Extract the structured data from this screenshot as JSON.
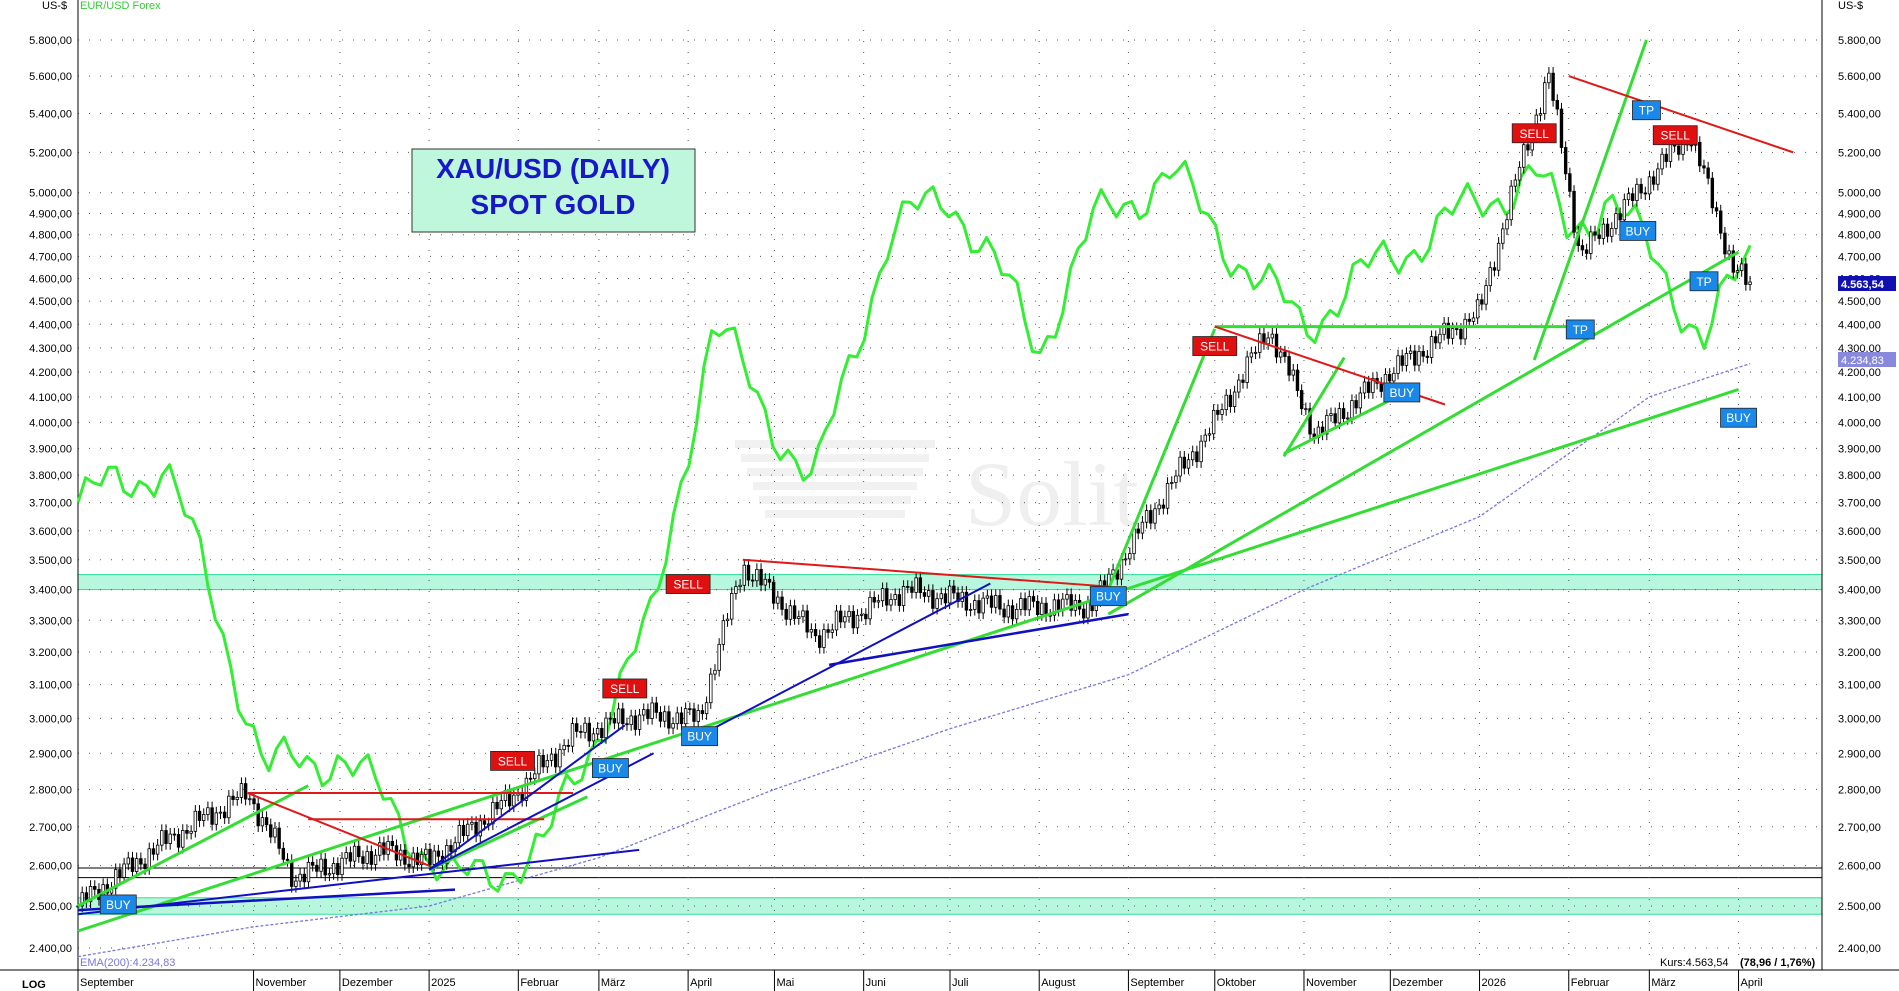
{
  "unit_label": "US-$",
  "overlay_label": "EUR/USD Forex",
  "title_lines": [
    "XAU/USD (DAILY)",
    "SPOT GOLD"
  ],
  "watermark": "Solit",
  "scale_label": "LOG",
  "ema_label": "EMA(200):4.234,83",
  "kurs_label": "Kurs:4.563,54",
  "kurs_change": "(78,96 / 1,76%)",
  "price_badge": "4.563,54",
  "ema_badge": "4.234,83",
  "colors": {
    "gold_candles": "#000000",
    "eurusd_line": "#33ee33",
    "trend_green": "#33dd33",
    "trend_red": "#e01818",
    "trend_blue": "#1010c0",
    "ema": "#7777dd",
    "support_zone": "#b6f7de",
    "sell_tag": "#e01010",
    "buy_tag": "#1a88e8",
    "title_box": "#bff7dc",
    "title_text": "#1818c8"
  },
  "chart_data": {
    "type": "line",
    "y_scale": "log",
    "ylim": [
      2350,
      5900
    ],
    "yticks": [
      "2.400,00",
      "2.500,00",
      "2.600,00",
      "2.700,00",
      "2.800,00",
      "2.900,00",
      "3.000,00",
      "3.100,00",
      "3.200,00",
      "3.300,00",
      "3.400,00",
      "3.500,00",
      "3.600,00",
      "3.700,00",
      "3.800,00",
      "3.900,00",
      "4.000,00",
      "4.100,00",
      "4.200,00",
      "4.300,00",
      "4.400,00",
      "4.500,00",
      "4.600,00",
      "4.700,00",
      "4.800,00",
      "4.900,00",
      "5.000,00",
      "5.200,00",
      "5.400,00",
      "5.600,00",
      "5.800,00"
    ],
    "x_labels": [
      "September",
      "November",
      "Dezember",
      "2025",
      "Februar",
      "März",
      "April",
      "Mai",
      "Juni",
      "Juli",
      "August",
      "September",
      "Oktober",
      "November",
      "Dezember",
      "2026",
      "Februar",
      "März",
      "April"
    ],
    "x_range": [
      "2024-09-01",
      "2026-04-30"
    ],
    "series": [
      {
        "name": "XAU/USD",
        "kind": "candles",
        "x": [
          "2024-09-01",
          "2024-10-01",
          "2024-10-30",
          "2024-11-15",
          "2024-12-15",
          "2025-01-01",
          "2025-01-30",
          "2025-02-20",
          "2025-03-15",
          "2025-04-05",
          "2025-04-20",
          "2025-05-15",
          "2025-06-15",
          "2025-07-20",
          "2025-08-20",
          "2025-09-05",
          "2025-10-01",
          "2025-10-20",
          "2025-11-05",
          "2025-12-01",
          "2026-01-01",
          "2026-01-25",
          "2026-02-05",
          "2026-02-25",
          "2026-03-15",
          "2026-03-30",
          "2026-04-05"
        ],
        "values": [
          2500,
          2660,
          2790,
          2570,
          2640,
          2610,
          2780,
          2950,
          3010,
          3000,
          3480,
          3250,
          3400,
          3340,
          3350,
          3600,
          4000,
          4380,
          3950,
          4200,
          4450,
          5600,
          4700,
          5000,
          5300,
          4650,
          4563.54
        ]
      },
      {
        "name": "EUR/USD Forex",
        "kind": "overlay-line",
        "x": [
          "2024-09-01",
          "2024-10-01",
          "2024-11-05",
          "2024-12-01",
          "2025-01-10",
          "2025-02-10",
          "2025-03-01",
          "2025-03-20",
          "2025-04-10",
          "2025-04-25",
          "2025-05-15",
          "2025-06-10",
          "2025-07-01",
          "2025-08-01",
          "2025-08-20",
          "2025-09-15",
          "2025-10-15",
          "2025-11-01",
          "2025-12-01",
          "2026-01-20",
          "2026-02-01",
          "2026-02-15",
          "2026-03-01",
          "2026-03-20",
          "2026-04-05"
        ],
        "values": [
          3700,
          3840,
          2850,
          2900,
          2550,
          2640,
          2980,
          3300,
          4400,
          4100,
          3750,
          4800,
          5000,
          4300,
          4850,
          5100,
          4600,
          4400,
          4700,
          5100,
          4800,
          5000,
          4700,
          4350,
          4680
        ]
      },
      {
        "name": "EMA(200)",
        "kind": "line",
        "x": [
          "2024-09-01",
          "2024-11-01",
          "2025-01-01",
          "2025-03-01",
          "2025-05-01",
          "2025-07-01",
          "2025-09-01",
          "2025-11-01",
          "2026-01-01",
          "2026-03-01",
          "2026-04-05"
        ],
        "values": [
          2380,
          2450,
          2500,
          2620,
          2800,
          2970,
          3130,
          3400,
          3650,
          4100,
          4234.83
        ]
      }
    ],
    "signals": [
      {
        "label": "BUY",
        "date": "2024-09-15",
        "price": 2505
      },
      {
        "label": "SELL",
        "date": "2025-01-30",
        "price": 2880
      },
      {
        "label": "BUY",
        "date": "2025-03-05",
        "price": 2860
      },
      {
        "label": "SELL",
        "date": "2025-03-10",
        "price": 3090
      },
      {
        "label": "SELL",
        "date": "2025-04-01",
        "price": 3420
      },
      {
        "label": "BUY",
        "date": "2025-04-05",
        "price": 2950
      },
      {
        "label": "BUY",
        "date": "2025-08-25",
        "price": 3380
      },
      {
        "label": "SELL",
        "date": "2025-10-01",
        "price": 4310
      },
      {
        "label": "BUY",
        "date": "2025-12-05",
        "price": 4120
      },
      {
        "label": "SELL",
        "date": "2026-01-20",
        "price": 5300
      },
      {
        "label": "TP",
        "date": "2026-02-05",
        "price": 4380
      },
      {
        "label": "BUY",
        "date": "2026-02-25",
        "price": 4820
      },
      {
        "label": "TP",
        "date": "2026-02-28",
        "price": 5420
      },
      {
        "label": "SELL",
        "date": "2026-03-10",
        "price": 5290
      },
      {
        "label": "TP",
        "date": "2026-03-20",
        "price": 4590
      },
      {
        "label": "BUY",
        "date": "2026-04-01",
        "price": 4020
      }
    ],
    "zones": [
      [
        3400,
        3450
      ],
      [
        2480,
        2520
      ]
    ],
    "grid": true,
    "legend": "top-left"
  }
}
